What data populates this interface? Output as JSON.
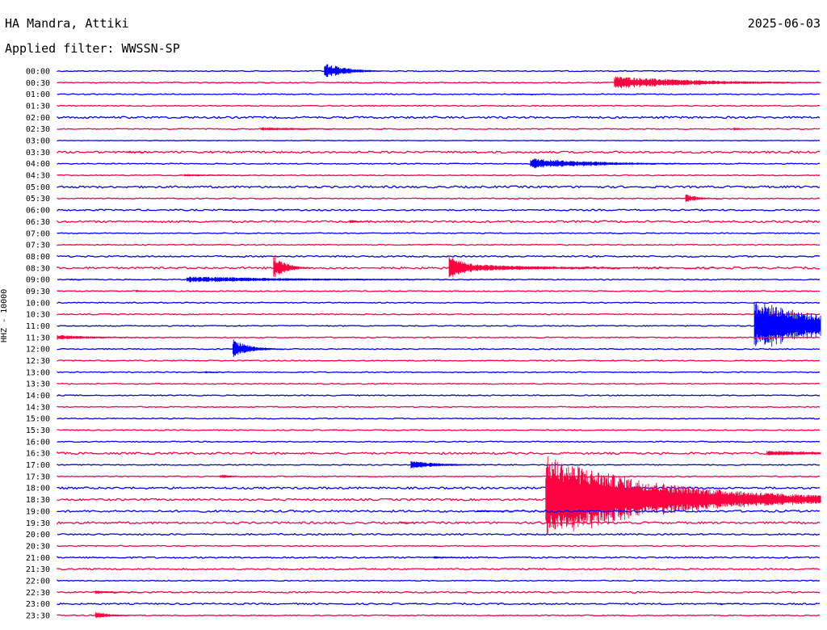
{
  "header": {
    "station": "HA Mandra, Attiki",
    "date": "2025-06-03",
    "filter": "Applied filter: WWSSN-SP",
    "channel_label": "HHZ - 10000"
  },
  "colors": {
    "odd_trace": "#0000ff",
    "even_trace": "#ff0040"
  },
  "chart_data": {
    "type": "line",
    "title": "HA Mandra, Attiki",
    "subtitle": "Applied filter: WWSSN-SP",
    "ylabel": "HHZ - 10000",
    "xlabel": "",
    "row_labels": [
      "00:00",
      "00:30",
      "01:00",
      "01:30",
      "02:00",
      "02:30",
      "03:00",
      "03:30",
      "04:00",
      "04:30",
      "05:00",
      "05:30",
      "06:00",
      "06:30",
      "07:00",
      "07:30",
      "08:00",
      "08:30",
      "09:00",
      "09:30",
      "10:00",
      "10:30",
      "11:00",
      "11:30",
      "12:00",
      "12:30",
      "13:00",
      "13:30",
      "14:00",
      "14:30",
      "15:00",
      "15:30",
      "16:00",
      "16:30",
      "17:00",
      "17:30",
      "18:00",
      "18:30",
      "19:00",
      "19:30",
      "20:00",
      "20:30",
      "21:00",
      "21:30",
      "22:00",
      "22:30",
      "23:00",
      "23:30"
    ],
    "row_noise": [
      1,
      1,
      1,
      1,
      2,
      1,
      0.5,
      2,
      1,
      1,
      2,
      1,
      1.5,
      2,
      1,
      1,
      1.5,
      2,
      1,
      1,
      1,
      1,
      1,
      1,
      1,
      1,
      1,
      1,
      1,
      1,
      1,
      1,
      1,
      2,
      1,
      1,
      2,
      2,
      2,
      2,
      1.5,
      1,
      1.5,
      1.5,
      1,
      1.5,
      1.5,
      1
    ],
    "events": [
      {
        "row": 0,
        "minute": 10.5,
        "amplitude": 20,
        "duration": 2.5
      },
      {
        "row": 0,
        "minute": 4.5,
        "amplitude": 2,
        "duration": 0.5
      },
      {
        "row": 1,
        "minute": 21.9,
        "amplitude": 15,
        "duration": 10
      },
      {
        "row": 1,
        "minute": 28.4,
        "amplitude": 2,
        "duration": 2
      },
      {
        "row": 2,
        "minute": 17.9,
        "amplitude": 2,
        "duration": 3
      },
      {
        "row": 5,
        "minute": 8.0,
        "amplitude": 4,
        "duration": 8
      },
      {
        "row": 5,
        "minute": 26.6,
        "amplitude": 4,
        "duration": 1
      },
      {
        "row": 7,
        "minute": 2.7,
        "amplitude": 3,
        "duration": 1.5
      },
      {
        "row": 8,
        "minute": 18.6,
        "amplitude": 13,
        "duration": 8
      },
      {
        "row": 9,
        "minute": 5.0,
        "amplitude": 3,
        "duration": 5
      },
      {
        "row": 11,
        "minute": 24.7,
        "amplitude": 11,
        "duration": 1.5
      },
      {
        "row": 12,
        "minute": 6.6,
        "amplitude": 2,
        "duration": 4
      },
      {
        "row": 13,
        "minute": 11.5,
        "amplitude": 5,
        "duration": 1
      },
      {
        "row": 17,
        "minute": 8.5,
        "amplitude": 28,
        "duration": 1.5
      },
      {
        "row": 17,
        "minute": 15.4,
        "amplitude": 36,
        "duration": 2
      },
      {
        "row": 17,
        "minute": 16.5,
        "amplitude": 8,
        "duration": 10
      },
      {
        "row": 18,
        "minute": 5.1,
        "amplitude": 7,
        "duration": 16
      },
      {
        "row": 18,
        "minute": 0.5,
        "amplitude": 2,
        "duration": 3
      },
      {
        "row": 19,
        "minute": 3.1,
        "amplitude": 3,
        "duration": 1.5
      },
      {
        "row": 22,
        "minute": 27.4,
        "amplitude": 60,
        "duration": 9
      },
      {
        "row": 23,
        "minute": 0.0,
        "amplitude": 6,
        "duration": 5
      },
      {
        "row": 24,
        "minute": 6.9,
        "amplitude": 22,
        "duration": 2
      },
      {
        "row": 26,
        "minute": 5.8,
        "amplitude": 3,
        "duration": 2
      },
      {
        "row": 33,
        "minute": 27.9,
        "amplitude": 6,
        "duration": 10
      },
      {
        "row": 34,
        "minute": 13.9,
        "amplitude": 9,
        "duration": 4
      },
      {
        "row": 35,
        "minute": 6.4,
        "amplitude": 5,
        "duration": 1.5
      },
      {
        "row": 35,
        "minute": 11.8,
        "amplitude": 2,
        "duration": 1
      },
      {
        "row": 37,
        "minute": 19.2,
        "amplitude": 100,
        "duration": 14
      },
      {
        "row": 38,
        "minute": 16.5,
        "amplitude": 3,
        "duration": 3
      },
      {
        "row": 39,
        "minute": 13.5,
        "amplitude": 4,
        "duration": 1
      },
      {
        "row": 41,
        "minute": 7.5,
        "amplitude": 2,
        "duration": 1.5
      },
      {
        "row": 42,
        "minute": 14.8,
        "amplitude": 3,
        "duration": 3
      },
      {
        "row": 45,
        "minute": 1.5,
        "amplitude": 4,
        "duration": 3
      },
      {
        "row": 46,
        "minute": 26.0,
        "amplitude": 2,
        "duration": 1.5
      },
      {
        "row": 47,
        "minute": 1.5,
        "amplitude": 8,
        "duration": 2
      }
    ]
  }
}
